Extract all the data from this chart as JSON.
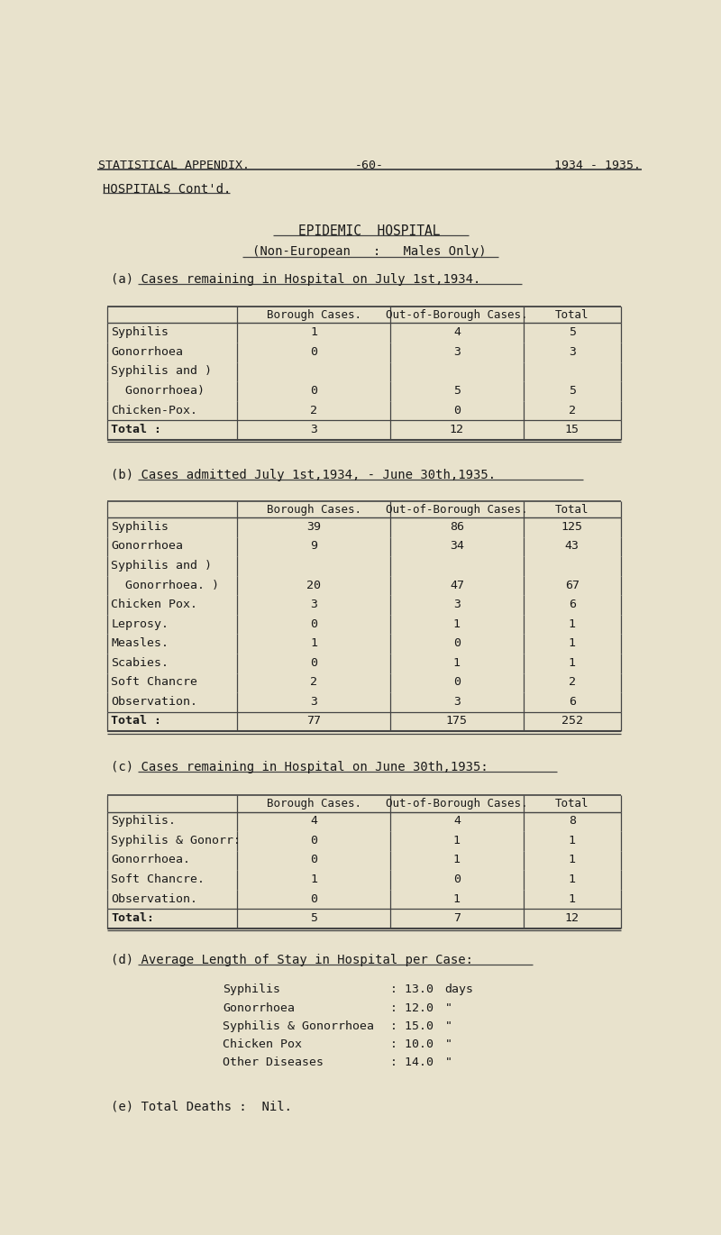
{
  "bg_color": "#e8e2cc",
  "text_color": "#1a1a1a",
  "table_a_rows": [
    [
      "Syphilis",
      "1",
      "4",
      "5"
    ],
    [
      "Gonorrhoea",
      "0",
      "3",
      "3"
    ],
    [
      "Syphilis and )",
      "",
      "",
      ""
    ],
    [
      "  Gonorrhoea)",
      "0",
      "5",
      "5"
    ],
    [
      "Chicken-Pox.",
      "2",
      "0",
      "2"
    ],
    [
      "Total :",
      "3",
      "12",
      "15"
    ]
  ],
  "table_b_rows": [
    [
      "Syphilis",
      "39",
      "86",
      "125"
    ],
    [
      "Gonorrhoea",
      "9",
      "34",
      "43"
    ],
    [
      "Syphilis and )",
      "",
      "",
      ""
    ],
    [
      "  Gonorrhoea. )",
      "20",
      "47",
      "67"
    ],
    [
      "Chicken Pox.",
      "3",
      "3",
      "6"
    ],
    [
      "Leprosy.",
      "0",
      "1",
      "1"
    ],
    [
      "Measles.",
      "1",
      "0",
      "1"
    ],
    [
      "Scabies.",
      "0",
      "1",
      "1"
    ],
    [
      "Soft Chancre",
      "2",
      "0",
      "2"
    ],
    [
      "Observation.",
      "3",
      "3",
      "6"
    ],
    [
      "Total :",
      "77",
      "175",
      "252"
    ]
  ],
  "table_c_rows": [
    [
      "Syphilis.",
      "4",
      "4",
      "8"
    ],
    [
      "Syphilis & Gonorr:",
      "0",
      "1",
      "1"
    ],
    [
      "Gonorrhoea.",
      "0",
      "1",
      "1"
    ],
    [
      "Soft Chancre.",
      "1",
      "0",
      "1"
    ],
    [
      "Observation.",
      "0",
      "1",
      "1"
    ],
    [
      "Total:",
      "5",
      "7",
      "12"
    ]
  ],
  "section_d_rows": [
    [
      "Syphilis",
      ": 13.0",
      "days"
    ],
    [
      "Gonorrhoea",
      ": 12.0",
      "\""
    ],
    [
      "Syphilis & Gonorrhoea",
      ": 15.0",
      "\""
    ],
    [
      "Chicken Pox",
      ": 10.0",
      "\""
    ],
    [
      "Other Diseases",
      ": 14.0",
      "\""
    ]
  ]
}
